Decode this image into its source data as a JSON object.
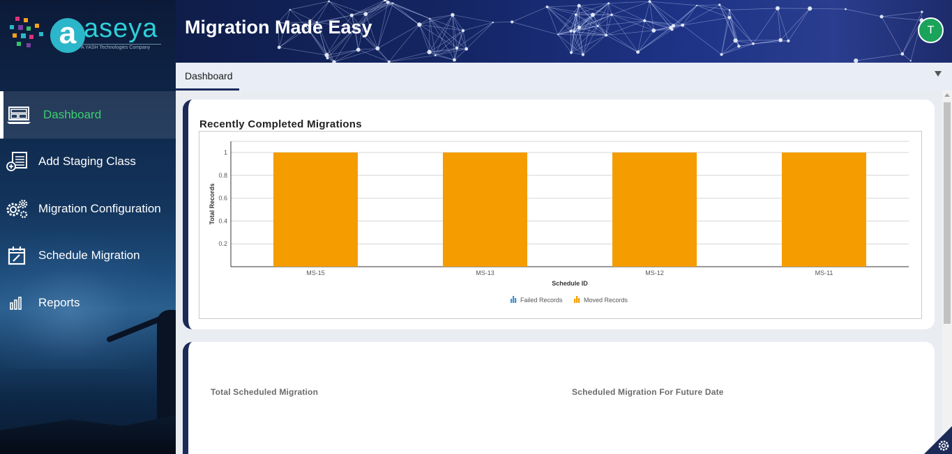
{
  "brand": {
    "logo_text": "aseya",
    "logo_letter": "a",
    "tagline": "A YASH Technologies Company"
  },
  "header": {
    "title": "Migration Made Easy",
    "avatar_initial": "T"
  },
  "sidebar": {
    "items": [
      {
        "label": "Dashboard",
        "icon": "dashboard-icon",
        "active": true
      },
      {
        "label": "Add Staging Class",
        "icon": "add-list-icon",
        "active": false
      },
      {
        "label": "Migration Configuration",
        "icon": "gears-icon",
        "active": false
      },
      {
        "label": "Schedule Migration",
        "icon": "calendar-edit-icon",
        "active": false
      },
      {
        "label": "Reports",
        "icon": "bar-chart-icon",
        "active": false
      }
    ]
  },
  "tabs": {
    "active": "Dashboard",
    "dropdown_icon": "triangle-down-icon"
  },
  "cards": {
    "recent_title": "Recently Completed Migrations",
    "total_scheduled_label": "Total Scheduled Migration",
    "future_scheduled_label": "Scheduled Migration For Future Date"
  },
  "colors": {
    "accent_active": "#3ad06f",
    "bar_moved": "#f59c00",
    "legend_failed": "#3d8fd1",
    "card_border": "#1b2a57",
    "avatar": "#1aa35a"
  },
  "chart_data": {
    "type": "bar",
    "categories": [
      "MS-15",
      "MS-13",
      "MS-12",
      "MS-11"
    ],
    "series": [
      {
        "name": "Failed Records",
        "values": [
          0,
          0,
          0,
          0
        ]
      },
      {
        "name": "Moved Records",
        "values": [
          1,
          1,
          1,
          1
        ]
      }
    ],
    "title": "Recently Completed Migrations",
    "xlabel": "Schedule ID",
    "ylabel": "Total Records",
    "ylim": [
      0,
      1
    ],
    "yticks": [
      "0.2",
      "0.4",
      "0.6",
      "0.8",
      "1"
    ],
    "grid": true,
    "legend": "bottom-center"
  }
}
